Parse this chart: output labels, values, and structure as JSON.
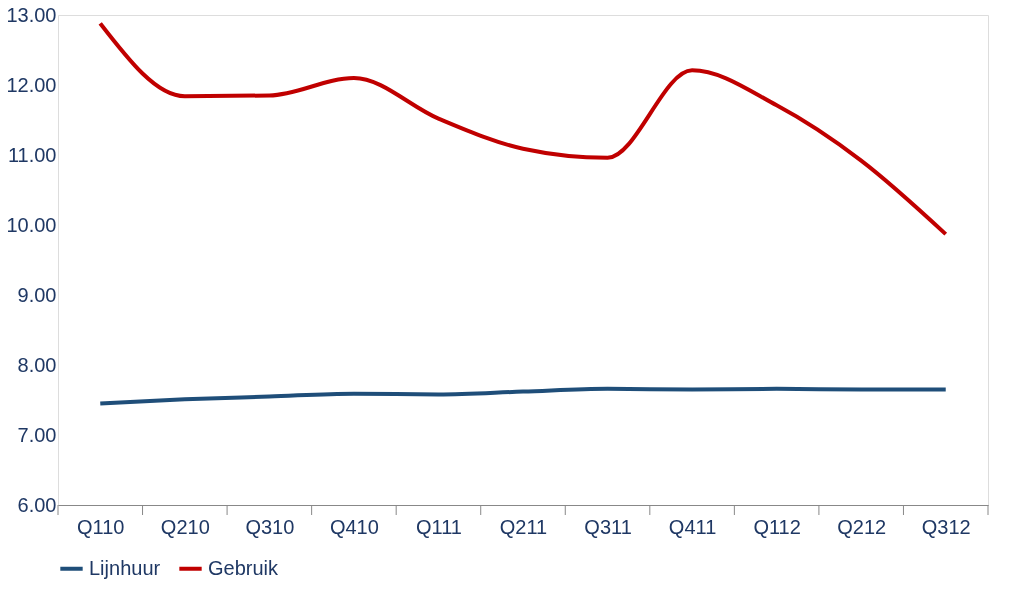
{
  "chart_data": {
    "type": "line",
    "categories": [
      "Q110",
      "Q210",
      "Q310",
      "Q410",
      "Q111",
      "Q211",
      "Q311",
      "Q411",
      "Q112",
      "Q212",
      "Q312"
    ],
    "series": [
      {
        "name": "Lijnhuur",
        "color": "#1f4e79",
        "values": [
          7.45,
          7.51,
          7.55,
          7.59,
          7.58,
          7.62,
          7.66,
          7.65,
          7.66,
          7.65,
          7.65
        ]
      },
      {
        "name": "Gebruik",
        "color": "#c00000",
        "values": [
          12.88,
          11.84,
          11.85,
          12.1,
          11.52,
          11.09,
          10.96,
          12.21,
          11.71,
          10.92,
          9.87
        ]
      }
    ],
    "ylim": [
      6,
      13
    ],
    "yticks": [
      {
        "value": 6,
        "label": "6.00"
      },
      {
        "value": 7,
        "label": "7.00"
      },
      {
        "value": 8,
        "label": "8.00"
      },
      {
        "value": 9,
        "label": "9.00"
      },
      {
        "value": 10,
        "label": "10.00"
      },
      {
        "value": 11,
        "label": "11.00"
      },
      {
        "value": 12,
        "label": "12.00"
      },
      {
        "value": 13,
        "label": "13.00"
      }
    ],
    "grid": false,
    "legend": "bottom",
    "marker": "none",
    "line_style": "solid"
  }
}
